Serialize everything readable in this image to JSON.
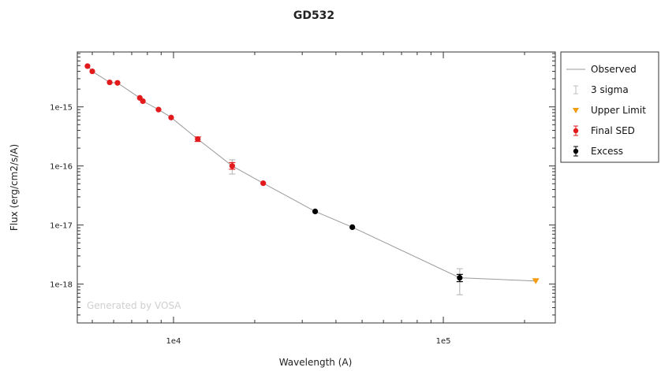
{
  "chart_data": {
    "type": "scatter",
    "title": "GD532",
    "xlabel": "Wavelength (A)",
    "ylabel": "Flux (erg/cm2/s/A)",
    "x_scale": "log",
    "y_scale": "log",
    "xlim": [
      4400,
      260000
    ],
    "ylim": [
      2.2e-19,
      8.5e-15
    ],
    "x_ticks": [
      {
        "value": 10000,
        "label": "1e4"
      },
      {
        "value": 100000,
        "label": "1e5"
      }
    ],
    "y_ticks": [
      {
        "value": 1e-15,
        "label": "1e-15"
      },
      {
        "value": 1e-16,
        "label": "1e-16"
      },
      {
        "value": 1e-17,
        "label": "1e-17"
      },
      {
        "value": 1e-18,
        "label": "1e-18"
      }
    ],
    "watermark": "Generated by VOSA",
    "legend_position": "right",
    "legend": [
      {
        "label": "Observed",
        "symbol": "line",
        "color": "#9a9a9a"
      },
      {
        "label": "3 sigma",
        "symbol": "errorbar",
        "color": "#bdbdbd"
      },
      {
        "label": "Upper Limit",
        "symbol": "triangle-down",
        "color": "#f39c12"
      },
      {
        "label": "Final SED",
        "symbol": "dot-errorbar",
        "color": "#e31a1c"
      },
      {
        "label": "Excess",
        "symbol": "dot-errorbar",
        "color": "#000000"
      }
    ],
    "series": [
      {
        "name": "Observed",
        "kind": "line",
        "color": "#9a9a9a",
        "x": [
          4800,
          5000,
          5800,
          6200,
          7500,
          7700,
          8800,
          9800,
          12300,
          16500,
          21500,
          33500,
          46000,
          115000,
          220000
        ],
        "y": [
          4.9e-15,
          4e-15,
          2.6e-15,
          2.55e-15,
          1.42e-15,
          1.25e-15,
          9e-16,
          6.6e-16,
          2.85e-16,
          1e-16,
          5.1e-17,
          1.7e-17,
          9.2e-18,
          1.28e-18,
          1.13e-18
        ]
      },
      {
        "name": "Final SED",
        "kind": "points",
        "color": "#e31a1c",
        "x": [
          4800,
          5000,
          5800,
          6200,
          7500,
          7700,
          8800,
          9800,
          12300,
          16500,
          21500
        ],
        "y": [
          4.9e-15,
          4e-15,
          2.6e-15,
          2.55e-15,
          1.42e-15,
          1.25e-15,
          9e-16,
          6.6e-16,
          2.85e-16,
          1e-16,
          5.1e-17
        ],
        "err_low": [
          null,
          null,
          null,
          null,
          null,
          null,
          null,
          null,
          2.6e-16,
          8.8e-17,
          null
        ],
        "err_high": [
          null,
          null,
          null,
          null,
          null,
          null,
          null,
          null,
          3.1e-16,
          1.14e-16,
          null
        ]
      },
      {
        "name": "Excess",
        "kind": "points",
        "color": "#000000",
        "x": [
          33500,
          46000,
          115000
        ],
        "y": [
          1.7e-17,
          9.2e-18,
          1.28e-18
        ],
        "err_low": [
          null,
          null,
          1.1e-18
        ],
        "err_high": [
          null,
          null,
          1.46e-18
        ]
      },
      {
        "name": "3 sigma",
        "kind": "errorbar",
        "color": "#bdbdbd",
        "x": [
          16500,
          115000
        ],
        "err_low": [
          7.3e-17,
          6.6e-19
        ],
        "err_high": [
          1.27e-16,
          1.82e-18
        ]
      },
      {
        "name": "Upper Limit",
        "kind": "triangle-down",
        "color": "#f39c12",
        "x": [
          220000
        ],
        "y": [
          1.13e-18
        ]
      }
    ]
  }
}
